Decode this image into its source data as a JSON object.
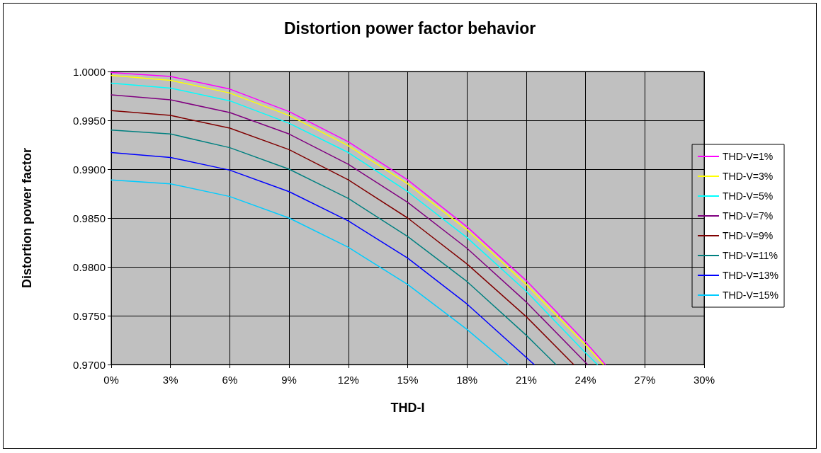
{
  "chart_data": {
    "type": "line",
    "title": "Distortion power factor behavior",
    "xlabel": "THD-I",
    "ylabel": "Distortion power factor",
    "xlim": [
      0,
      30
    ],
    "xticks": [
      {
        "value": 0,
        "label": "0%"
      },
      {
        "value": 3,
        "label": "3%"
      },
      {
        "value": 6,
        "label": "6%"
      },
      {
        "value": 9,
        "label": "9%"
      },
      {
        "value": 12,
        "label": "12%"
      },
      {
        "value": 15,
        "label": "15%"
      },
      {
        "value": 18,
        "label": "18%"
      },
      {
        "value": 21,
        "label": "21%"
      },
      {
        "value": 24,
        "label": "24%"
      },
      {
        "value": 27,
        "label": "27%"
      },
      {
        "value": 30,
        "label": "30%"
      }
    ],
    "ylim": [
      0.97,
      1.0
    ],
    "yticks": [
      {
        "value": 0.97,
        "label": "0.9700"
      },
      {
        "value": 0.975,
        "label": "0.9750"
      },
      {
        "value": 0.98,
        "label": "0.9800"
      },
      {
        "value": 0.985,
        "label": "0.9850"
      },
      {
        "value": 0.99,
        "label": "0.9900"
      },
      {
        "value": 0.995,
        "label": "0.9950"
      },
      {
        "value": 1.0,
        "label": "1.0000"
      }
    ],
    "grid": true,
    "legend": "right",
    "marker": "none",
    "line_style": "solid",
    "series": [
      {
        "name": "THD-V=1%",
        "color": "#ff00ff",
        "x": [
          0,
          3,
          6,
          9,
          12,
          15,
          18,
          21,
          24,
          25.0
        ],
        "values": [
          0.9999,
          0.9995,
          0.9982,
          0.9959,
          0.9928,
          0.9889,
          0.9841,
          0.9786,
          0.9723,
          0.97
        ]
      },
      {
        "name": "THD-V=3%",
        "color": "#ffff00",
        "x": [
          0,
          3,
          6,
          9,
          12,
          15,
          18,
          21,
          24,
          24.9
        ],
        "values": [
          0.9996,
          0.9991,
          0.9978,
          0.9955,
          0.9924,
          0.9885,
          0.9838,
          0.9782,
          0.972,
          0.97
        ]
      },
      {
        "name": "THD-V=5%",
        "color": "#00ffff",
        "x": [
          0,
          3,
          6,
          9,
          12,
          15,
          18,
          21,
          24,
          24.6
        ],
        "values": [
          0.9988,
          0.9983,
          0.997,
          0.9947,
          0.9917,
          0.9877,
          0.983,
          0.9775,
          0.9712,
          0.97
        ]
      },
      {
        "name": "THD-V=7%",
        "color": "#800080",
        "x": [
          0,
          3,
          6,
          9,
          12,
          15,
          18,
          21,
          24.1
        ],
        "values": [
          0.9976,
          0.9971,
          0.9958,
          0.9936,
          0.9905,
          0.9866,
          0.9819,
          0.9764,
          0.97
        ]
      },
      {
        "name": "THD-V=9%",
        "color": "#800000",
        "x": [
          0,
          3,
          6,
          9,
          12,
          15,
          18,
          21,
          23.4
        ],
        "values": [
          0.996,
          0.9955,
          0.9942,
          0.992,
          0.9889,
          0.985,
          0.9803,
          0.9749,
          0.97
        ]
      },
      {
        "name": "THD-V=11%",
        "color": "#008080",
        "x": [
          0,
          3,
          6,
          9,
          12,
          15,
          18,
          21,
          22.5
        ],
        "values": [
          0.994,
          0.9936,
          0.9922,
          0.99,
          0.987,
          0.9831,
          0.9785,
          0.973,
          0.97
        ]
      },
      {
        "name": "THD-V=13%",
        "color": "#0000ff",
        "x": [
          0,
          3,
          6,
          9,
          12,
          15,
          18,
          21.4
        ],
        "values": [
          0.9917,
          0.9912,
          0.9899,
          0.9877,
          0.9847,
          0.9809,
          0.9762,
          0.97
        ]
      },
      {
        "name": "THD-V=15%",
        "color": "#00ccff",
        "x": [
          0,
          3,
          6,
          9,
          12,
          15,
          18,
          20.1
        ],
        "values": [
          0.9889,
          0.9885,
          0.9872,
          0.985,
          0.982,
          0.9782,
          0.9736,
          0.97
        ]
      }
    ]
  }
}
